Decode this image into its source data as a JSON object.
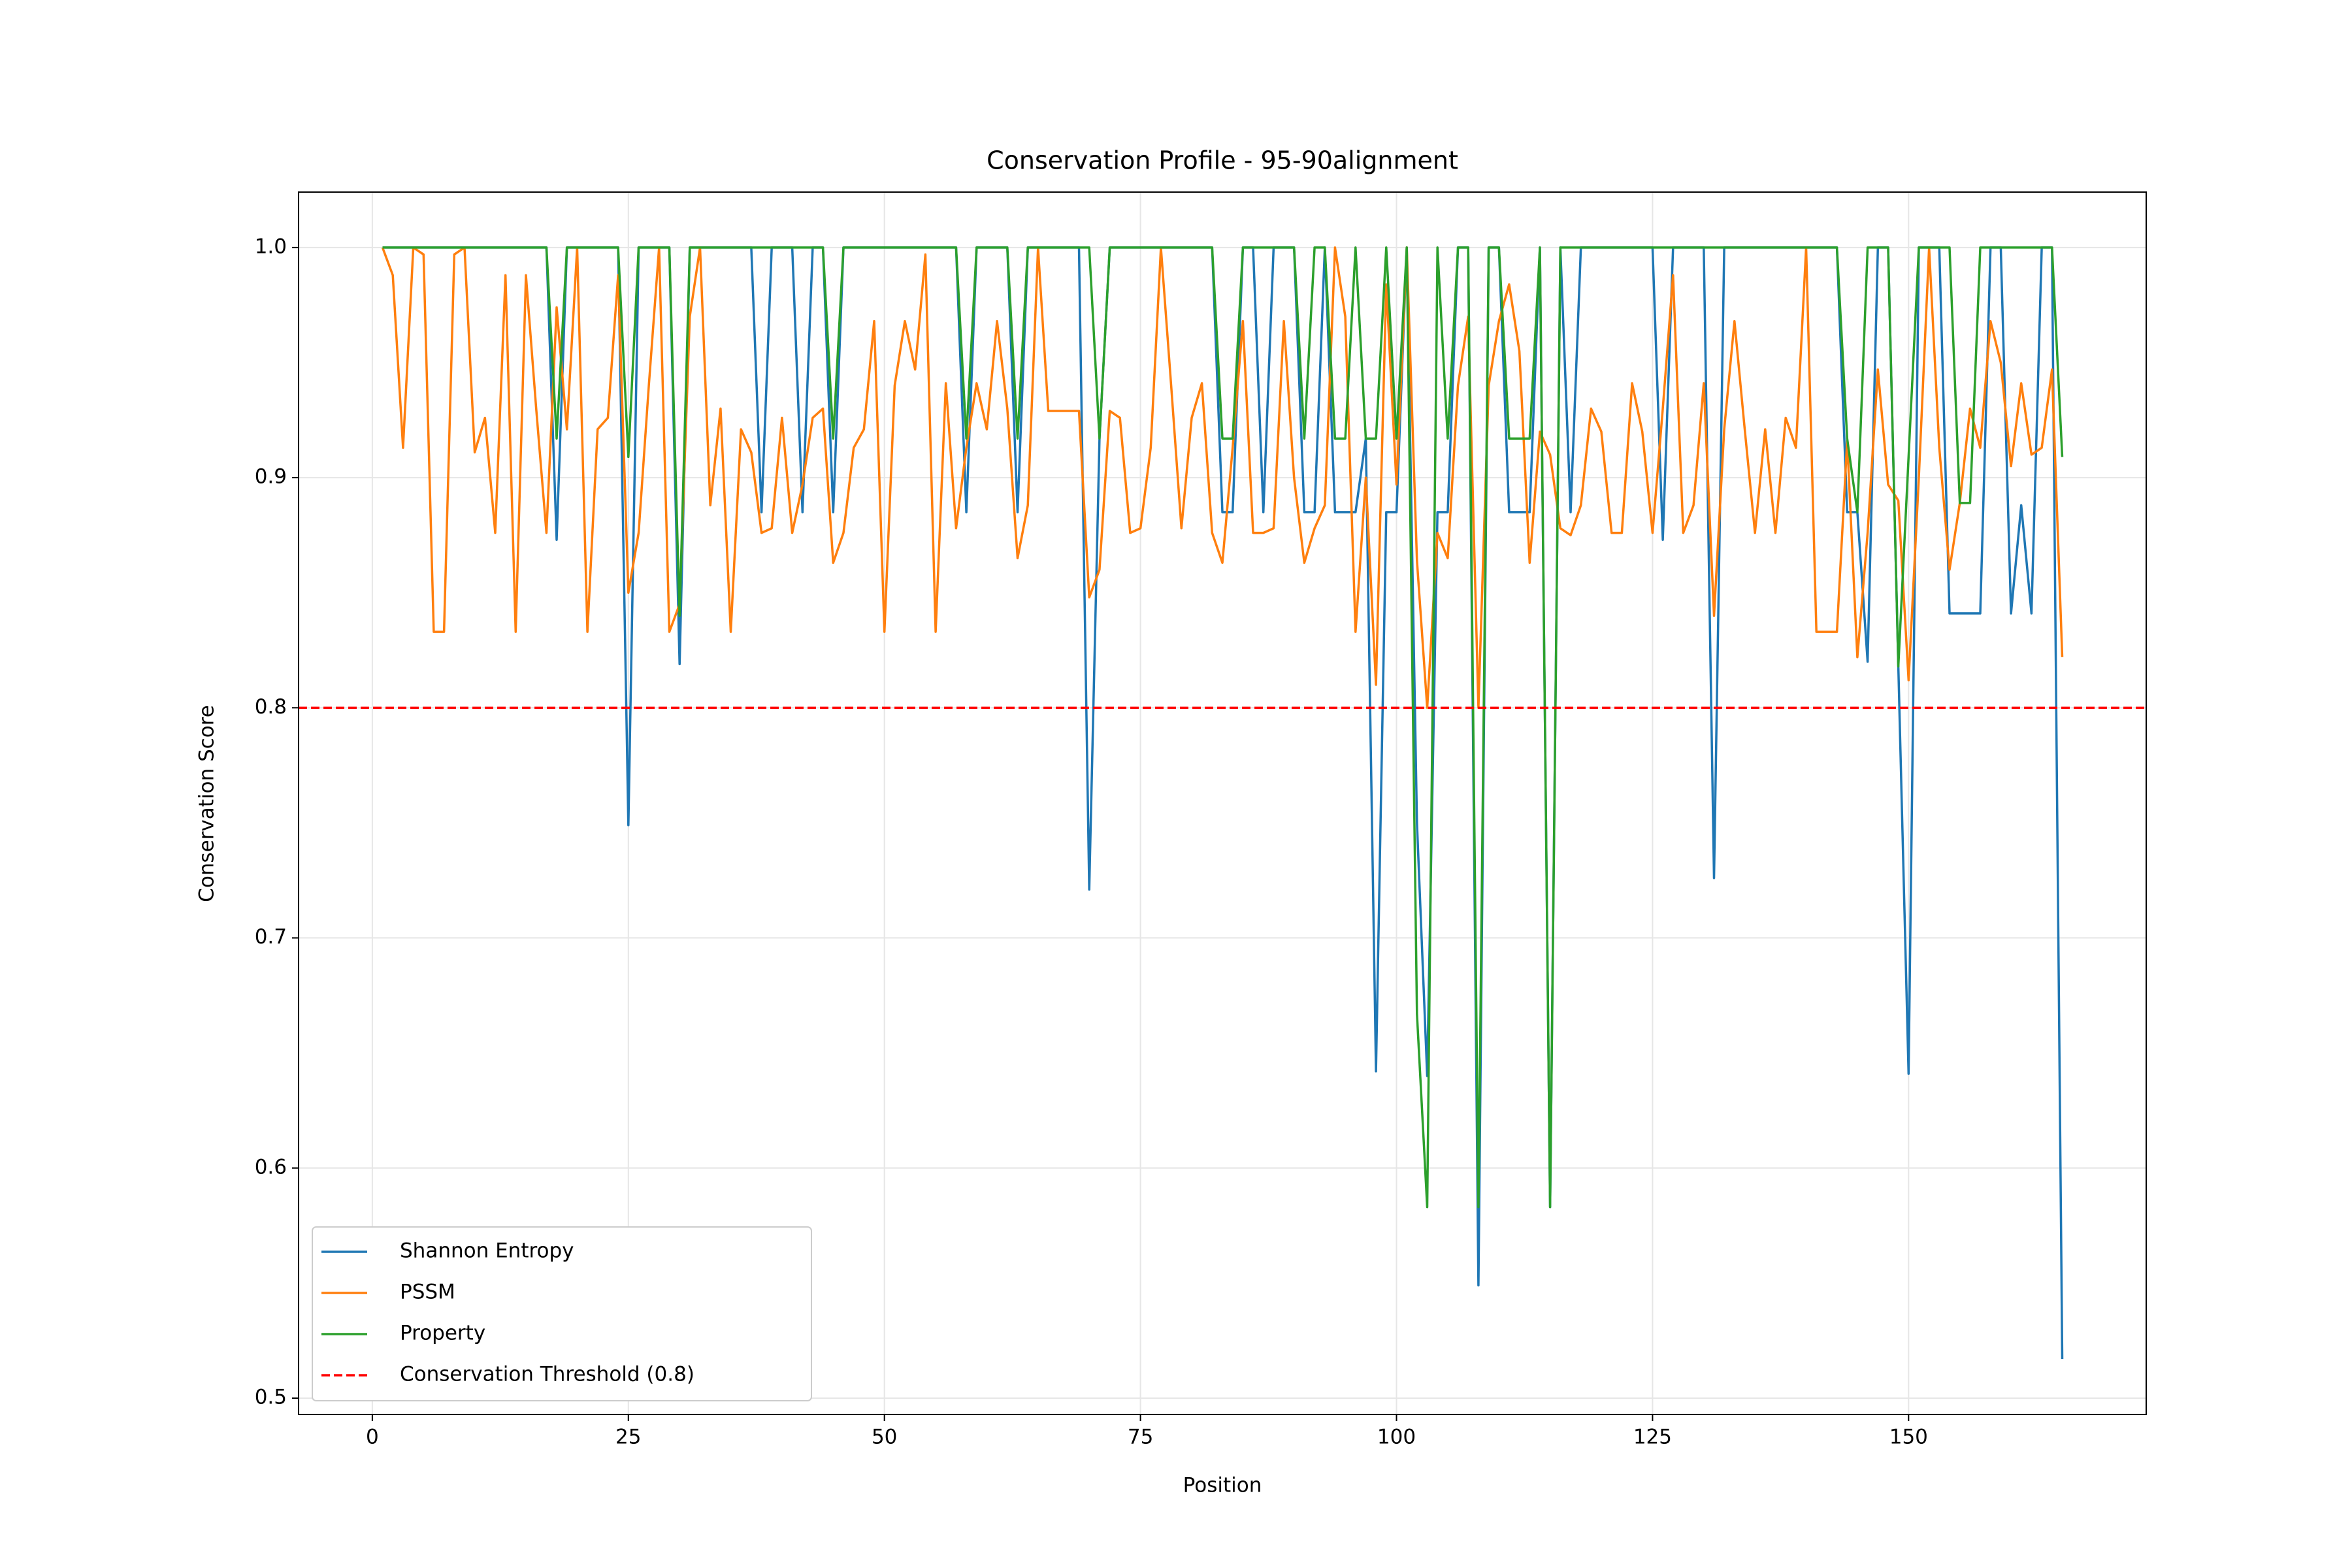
{
  "chart_data": {
    "type": "line",
    "title": "Conservation Profile - 95-90alignment",
    "xlabel": "Position",
    "ylabel": "Conservation Score",
    "xlim": [
      -7.2,
      173.2
    ],
    "ylim": [
      0.4929,
      1.0241
    ],
    "xticks": [
      0,
      25,
      50,
      75,
      100,
      125,
      150
    ],
    "yticks": [
      0.5,
      0.6,
      0.7,
      0.8,
      0.9,
      {
        "value": 1,
        "label": "1.0"
      }
    ],
    "grid": true,
    "legend": "lower left",
    "x": [
      1,
      2,
      3,
      4,
      5,
      6,
      7,
      8,
      9,
      10,
      11,
      12,
      13,
      14,
      15,
      16,
      17,
      18,
      19,
      20,
      21,
      22,
      23,
      24,
      25,
      26,
      27,
      28,
      29,
      30,
      31,
      32,
      33,
      34,
      35,
      36,
      37,
      38,
      39,
      40,
      41,
      42,
      43,
      44,
      45,
      46,
      47,
      48,
      49,
      50,
      51,
      52,
      53,
      54,
      55,
      56,
      57,
      58,
      59,
      60,
      61,
      62,
      63,
      64,
      65,
      66,
      67,
      68,
      69,
      70,
      71,
      72,
      73,
      74,
      75,
      76,
      77,
      78,
      79,
      80,
      81,
      82,
      83,
      84,
      85,
      86,
      87,
      88,
      89,
      90,
      91,
      92,
      93,
      94,
      95,
      96,
      97,
      98,
      99,
      100,
      101,
      102,
      103,
      104,
      105,
      106,
      107,
      108,
      109,
      110,
      111,
      112,
      113,
      114,
      115,
      116,
      117,
      118,
      119,
      120,
      121,
      122,
      123,
      124,
      125,
      126,
      127,
      128,
      129,
      130,
      131,
      132,
      133,
      134,
      135,
      136,
      137,
      138,
      139,
      140,
      141,
      142,
      143,
      144,
      145,
      146,
      147,
      148,
      149,
      150,
      151,
      152,
      153,
      154,
      155,
      156,
      157,
      158,
      159,
      160,
      161,
      162,
      163,
      164,
      165
    ],
    "series": [
      {
        "name": "Shannon Entropy",
        "color": "#1f77b4",
        "values": [
          1,
          1,
          1,
          1,
          1,
          1,
          1,
          1,
          1,
          1,
          1,
          1,
          1,
          1,
          1,
          1,
          1,
          0.873,
          1,
          1,
          1,
          1,
          1,
          1,
          0.749,
          1,
          1,
          1,
          1,
          0.819,
          1,
          1,
          1,
          1,
          1,
          1,
          1,
          0.885,
          1,
          1,
          1,
          0.885,
          1,
          1,
          0.885,
          1,
          1,
          1,
          1,
          1,
          1,
          1,
          1,
          1,
          1,
          1,
          1,
          0.885,
          1,
          1,
          1,
          1,
          0.885,
          1,
          1,
          1,
          1,
          1,
          1,
          0.721,
          0.917,
          1,
          1,
          1,
          1,
          1,
          1,
          1,
          1,
          1,
          1,
          1,
          0.885,
          0.885,
          1,
          1,
          0.885,
          1,
          1,
          1,
          0.885,
          0.885,
          1,
          0.885,
          0.885,
          0.885,
          0.917,
          0.642,
          0.885,
          0.885,
          1,
          0.75,
          0.64,
          0.885,
          0.885,
          1,
          1,
          0.549,
          1,
          1,
          0.885,
          0.885,
          0.885,
          1,
          0.583,
          1,
          0.885,
          1,
          1,
          1,
          1,
          1,
          1,
          1,
          1,
          0.873,
          1,
          1,
          1,
          1,
          0.726,
          1,
          1,
          1,
          1,
          1,
          1,
          1,
          1,
          1,
          1,
          1,
          1,
          0.885,
          0.885,
          0.82,
          1,
          1,
          0.818,
          0.641,
          1,
          1,
          1,
          0.841,
          0.841,
          0.841,
          0.841,
          1,
          1,
          0.841,
          0.888,
          0.841,
          1,
          1,
          0.517
        ]
      },
      {
        "name": "PSSM",
        "color": "#ff7f0e",
        "values": [
          1,
          0.988,
          0.913,
          1,
          0.997,
          0.833,
          0.833,
          0.997,
          1,
          0.911,
          0.926,
          0.876,
          0.988,
          0.833,
          0.988,
          0.93,
          0.876,
          0.974,
          0.921,
          1,
          0.833,
          0.921,
          0.926,
          0.988,
          0.85,
          0.876,
          0.94,
          1,
          0.833,
          0.845,
          0.97,
          1,
          0.888,
          0.93,
          0.833,
          0.921,
          0.911,
          0.876,
          0.878,
          0.926,
          0.876,
          0.897,
          0.926,
          0.93,
          0.863,
          0.876,
          0.913,
          0.921,
          0.968,
          0.833,
          0.94,
          0.968,
          0.947,
          0.997,
          0.833,
          0.941,
          0.878,
          0.913,
          0.941,
          0.921,
          0.968,
          0.93,
          0.865,
          0.888,
          1,
          0.929,
          0.929,
          0.929,
          0.929,
          0.848,
          0.86,
          0.929,
          0.926,
          0.876,
          0.878,
          0.913,
          1,
          0.94,
          0.878,
          0.926,
          0.941,
          0.876,
          0.863,
          0.913,
          0.968,
          0.876,
          0.876,
          0.878,
          0.968,
          0.9,
          0.863,
          0.878,
          0.888,
          1,
          0.97,
          0.833,
          0.9,
          0.81,
          0.984,
          0.897,
          1,
          0.864,
          0.8,
          0.876,
          0.865,
          0.94,
          0.97,
          0.8,
          0.94,
          0.968,
          0.984,
          0.955,
          0.863,
          0.92,
          0.91,
          0.878,
          0.875,
          0.888,
          0.93,
          0.92,
          0.876,
          0.876,
          0.941,
          0.92,
          0.876,
          0.93,
          0.988,
          0.876,
          0.888,
          0.941,
          0.84,
          0.921,
          0.968,
          0.921,
          0.876,
          0.921,
          0.876,
          0.926,
          0.913,
          1,
          0.833,
          0.833,
          0.833,
          0.916,
          0.822,
          0.876,
          0.947,
          0.897,
          0.89,
          0.812,
          0.9,
          1,
          0.913,
          0.86,
          0.889,
          0.93,
          0.913,
          0.968,
          0.95,
          0.905,
          0.941,
          0.91,
          0.913,
          0.947,
          0.822
        ]
      },
      {
        "name": "Property",
        "color": "#2ca02c",
        "values": [
          1,
          1,
          1,
          1,
          1,
          1,
          1,
          1,
          1,
          1,
          1,
          1,
          1,
          1,
          1,
          1,
          1,
          0.917,
          1,
          1,
          1,
          1,
          1,
          1,
          0.909,
          1,
          1,
          1,
          1,
          0.84,
          1,
          1,
          1,
          1,
          1,
          1,
          1,
          1,
          1,
          1,
          1,
          1,
          1,
          1,
          0.917,
          1,
          1,
          1,
          1,
          1,
          1,
          1,
          1,
          1,
          1,
          1,
          1,
          0.917,
          1,
          1,
          1,
          1,
          0.917,
          1,
          1,
          1,
          1,
          1,
          1,
          1,
          0.917,
          1,
          1,
          1,
          1,
          1,
          1,
          1,
          1,
          1,
          1,
          1,
          0.917,
          0.917,
          1,
          1,
          1,
          1,
          1,
          1,
          0.917,
          1,
          1,
          0.917,
          0.917,
          1,
          0.917,
          0.917,
          1,
          0.917,
          1,
          0.667,
          0.583,
          1,
          0.917,
          1,
          1,
          0.583,
          1,
          1,
          0.917,
          0.917,
          0.917,
          1,
          0.583,
          1,
          1,
          1,
          1,
          1,
          1,
          1,
          1,
          1,
          1,
          1,
          1,
          1,
          1,
          1,
          1,
          1,
          1,
          1,
          1,
          1,
          1,
          1,
          1,
          1,
          1,
          1,
          1,
          0.917,
          0.885,
          1,
          1,
          1,
          0.818,
          0.909,
          1,
          1,
          1,
          1,
          0.889,
          0.889,
          1,
          1,
          1,
          1,
          1,
          1,
          1,
          1,
          0.909
        ]
      }
    ],
    "threshold": {
      "value": 0.8,
      "label": "Conservation Threshold (0.8)",
      "color": "#ff0000"
    }
  }
}
